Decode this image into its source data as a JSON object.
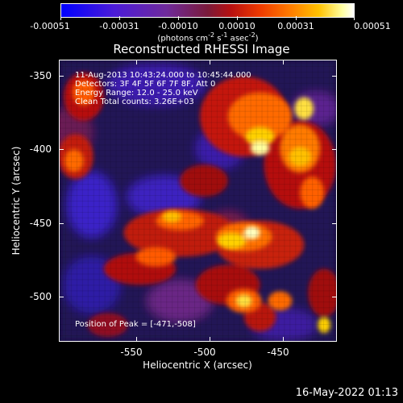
{
  "colorbar": {
    "ticks": [
      "-0.00051",
      "-0.00031",
      "-0.00010",
      "0.00010",
      "0.00031",
      "0.00051"
    ],
    "units_text": "(photons cm",
    "units_sup1": "-2",
    "units_mid1": " s",
    "units_sup2": "-1",
    "units_mid2": " asec",
    "units_sup3": "-2",
    "units_end": ")"
  },
  "title": "Reconstructed RHESSI Image",
  "annotations": {
    "line1": "11-Aug-2013 10:43:24.000 to 10:45:44.000",
    "line2": "Detectors: 3F 4F 5F 6F 7F 8F, Att 0",
    "line3": "Energy Range: 12.0 - 25.0 keV",
    "line4": "Clean     Total counts: 3.26E+03",
    "peak": "Position of Peak = [-471,-508]"
  },
  "axes": {
    "x_title": "Heliocentric X (arcsec)",
    "y_title": "Heliocentric Y (arcsec)",
    "x_ticks": [
      "-550",
      "-500",
      "-450"
    ],
    "y_ticks": [
      "-350",
      "-400",
      "-450",
      "-500"
    ]
  },
  "timestamp": "16-May-2022 01:13"
}
